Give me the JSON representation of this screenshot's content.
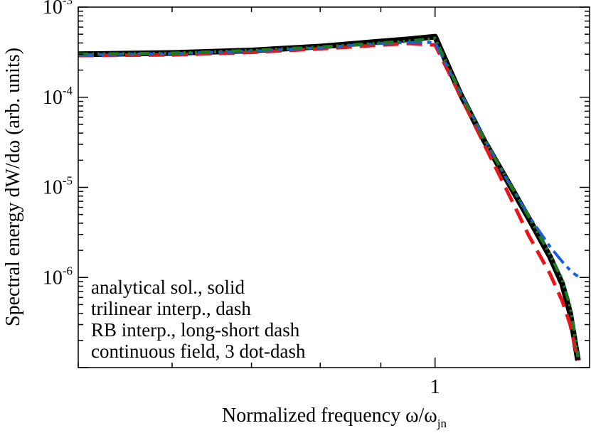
{
  "chart_data": {
    "type": "line",
    "x_scale": "log",
    "y_scale": "log",
    "xlim": [
      0.5,
      1.35
    ],
    "ylim": [
      1e-07,
      0.001
    ],
    "xlabel": {
      "main": "Normalized frequency ω/ω",
      "sub": "jn"
    },
    "ylabel": "Spectral energy dW/dω (arb. units)",
    "x_ticks": [
      {
        "value": 1,
        "label": "1"
      }
    ],
    "y_ticks": [
      {
        "value": 0.001,
        "base": "10",
        "exp": "-3"
      },
      {
        "value": 0.0001,
        "base": "10",
        "exp": "-4"
      },
      {
        "value": 1e-05,
        "base": "10",
        "exp": "-5"
      },
      {
        "value": 1e-06,
        "base": "10",
        "exp": "-6"
      }
    ],
    "grid": false,
    "legend_position": "bottom-left",
    "series": [
      {
        "name": "analytical sol., solid",
        "color": "#000000",
        "style": "solid",
        "x": [
          0.5,
          0.6,
          0.7,
          0.8,
          0.9,
          0.95,
          1.0,
          1.05,
          1.1,
          1.15,
          1.2,
          1.25,
          1.28,
          1.3,
          1.31,
          1.32
        ],
        "y": [
          0.0003,
          0.00031,
          0.00033,
          0.000365,
          0.000415,
          0.00044,
          0.00047,
          0.00011,
          3.3e-05,
          1.2e-05,
          4.5e-06,
          1.7e-06,
          8.5e-07,
          4e-07,
          2.2e-07,
          1.2e-07
        ]
      },
      {
        "name": "trilinear interp., dash",
        "color": "#e8161c",
        "style": "dash",
        "x": [
          0.5,
          0.6,
          0.7,
          0.8,
          0.9,
          0.95,
          1.0,
          1.05,
          1.1,
          1.15,
          1.2,
          1.25,
          1.28,
          1.3,
          1.31,
          1.32
        ],
        "y": [
          0.00029,
          0.000295,
          0.000315,
          0.000345,
          0.00038,
          0.000395,
          0.00038,
          0.000105,
          3e-05,
          9.2e-06,
          2.9e-06,
          1.1e-06,
          5.5e-07,
          3e-07,
          1.9e-07,
          1.2e-07
        ]
      },
      {
        "name": "RB interp., long-short dash",
        "color": "#1a5fe0",
        "style": "long-short-dash",
        "x": [
          0.5,
          0.6,
          0.7,
          0.8,
          0.9,
          0.95,
          1.0,
          1.05,
          1.1,
          1.15,
          1.2,
          1.25,
          1.28,
          1.3,
          1.31,
          1.32
        ],
        "y": [
          0.000295,
          0.000305,
          0.000325,
          0.000355,
          0.000395,
          0.000405,
          0.000405,
          0.000115,
          3.5e-05,
          1.22e-05,
          4.8e-06,
          2.2e-06,
          1.5e-06,
          1.2e-06,
          1.1e-06,
          1.03e-06
        ]
      },
      {
        "name": "continuous field, 3 dot-dash",
        "color": "#1e7a1e",
        "style": "dot-dash",
        "x": [
          0.5,
          0.6,
          0.7,
          0.8,
          0.9,
          0.95,
          1.0,
          1.05,
          1.1,
          1.15,
          1.2,
          1.25,
          1.28,
          1.3,
          1.31,
          1.32
        ],
        "y": [
          0.0003,
          0.000308,
          0.00033,
          0.00036,
          0.0004,
          0.00042,
          0.00045,
          0.000113,
          3.4e-05,
          1.24e-05,
          4.7e-06,
          1.8e-06,
          9.5e-07,
          4.8e-07,
          2.6e-07,
          1.3e-07
        ]
      }
    ]
  }
}
